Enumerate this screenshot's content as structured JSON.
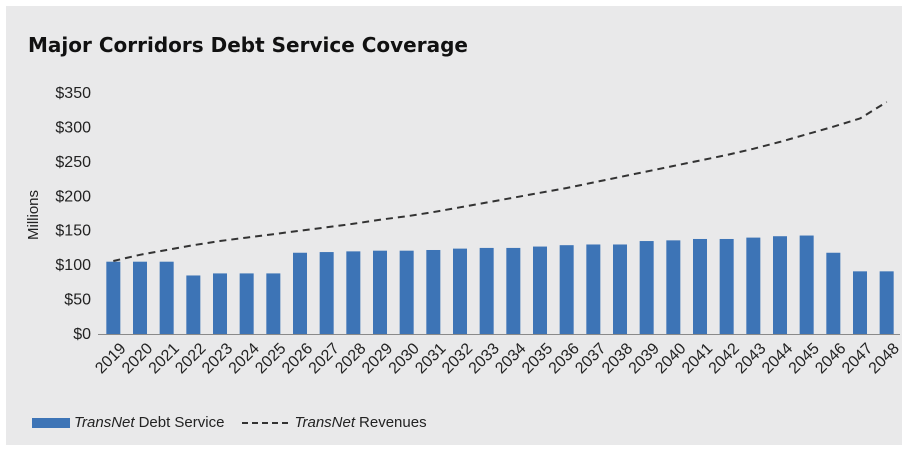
{
  "chart_data": {
    "type": "bar",
    "title": "Major Corridors Debt Service Coverage",
    "ylabel": "Millions",
    "xlabel": "",
    "ylim": [
      0,
      350
    ],
    "yticks": [
      {
        "value": 0,
        "label": "$0"
      },
      {
        "value": 50,
        "label": "$50"
      },
      {
        "value": 100,
        "label": "$100"
      },
      {
        "value": 150,
        "label": "$150"
      },
      {
        "value": 200,
        "label": "$200"
      },
      {
        "value": 250,
        "label": "$250"
      },
      {
        "value": 300,
        "label": "$300"
      },
      {
        "value": 350,
        "label": "$350"
      }
    ],
    "categories": [
      "2019",
      "2020",
      "2021",
      "2022",
      "2023",
      "2024",
      "2025",
      "2026",
      "2027",
      "2028",
      "2029",
      "2030",
      "2031",
      "2032",
      "2033",
      "2034",
      "2035",
      "2036",
      "2037",
      "2038",
      "2039",
      "2040",
      "2041",
      "2042",
      "2043",
      "2044",
      "2045",
      "2046",
      "2047",
      "2048"
    ],
    "series": [
      {
        "name": "Debt Service",
        "name_prefix": "TransNet",
        "type": "bar",
        "color": "#3d74b6",
        "values": [
          105,
          105,
          105,
          85,
          88,
          88,
          88,
          118,
          119,
          120,
          121,
          121,
          122,
          124,
          125,
          125,
          127,
          129,
          130,
          130,
          135,
          136,
          138,
          138,
          140,
          142,
          143,
          118,
          91,
          91
        ]
      },
      {
        "name": "Revenues",
        "name_prefix": "TransNet",
        "type": "line",
        "style": "dashed",
        "color": "#333333",
        "values": [
          106,
          115,
          122,
          129,
          135,
          140,
          145,
          150,
          155,
          160,
          166,
          171,
          177,
          184,
          191,
          198,
          205,
          212,
          220,
          228,
          236,
          244,
          252,
          260,
          269,
          279,
          290,
          301,
          313,
          337
        ]
      }
    ],
    "grid": false,
    "legend_position": "bottom-left"
  }
}
